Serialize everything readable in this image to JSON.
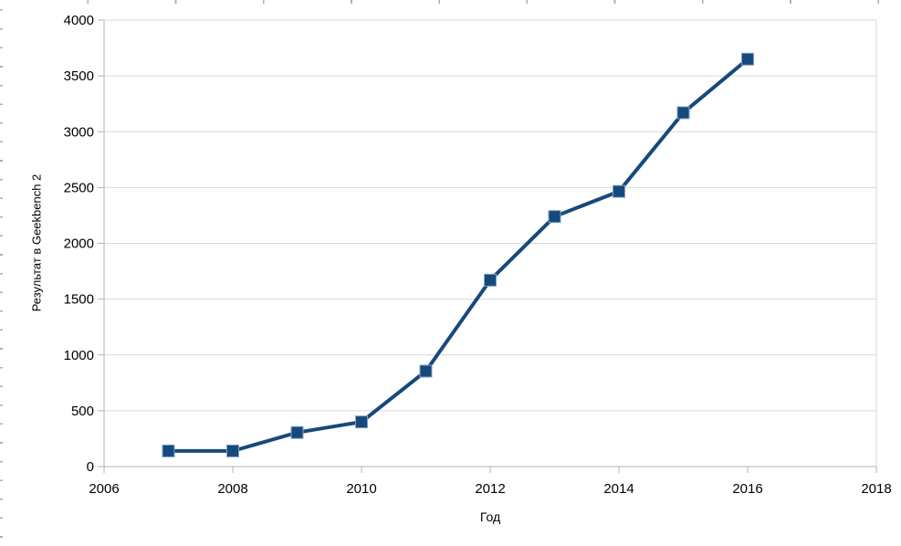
{
  "chart_data": {
    "type": "line",
    "xlabel": "Год",
    "ylabel": "Результат в Geekbench 2",
    "x": [
      2007,
      2008,
      2009,
      2010,
      2011,
      2012,
      2013,
      2014,
      2015,
      2016
    ],
    "values": [
      140,
      140,
      305,
      400,
      855,
      1670,
      2240,
      2465,
      3170,
      3650
    ],
    "xlim": [
      2006,
      2018
    ],
    "ylim": [
      0,
      4000
    ],
    "x_ticks": [
      2006,
      2008,
      2010,
      2012,
      2014,
      2016,
      2018
    ],
    "y_ticks": [
      0,
      500,
      1000,
      1500,
      2000,
      2500,
      3000,
      3500,
      4000
    ],
    "grid": "horizontal-major",
    "legend": "none",
    "marker": "square",
    "colors": {
      "line": "#17497B",
      "marker": "#17497B",
      "marker_edge": "#7FA3C9",
      "axis": "#B3B3B3",
      "gridline": "#D9D9D9",
      "text": "#000000",
      "background": "#FFFFFF",
      "edge_tick": "#AEAEAE"
    }
  }
}
